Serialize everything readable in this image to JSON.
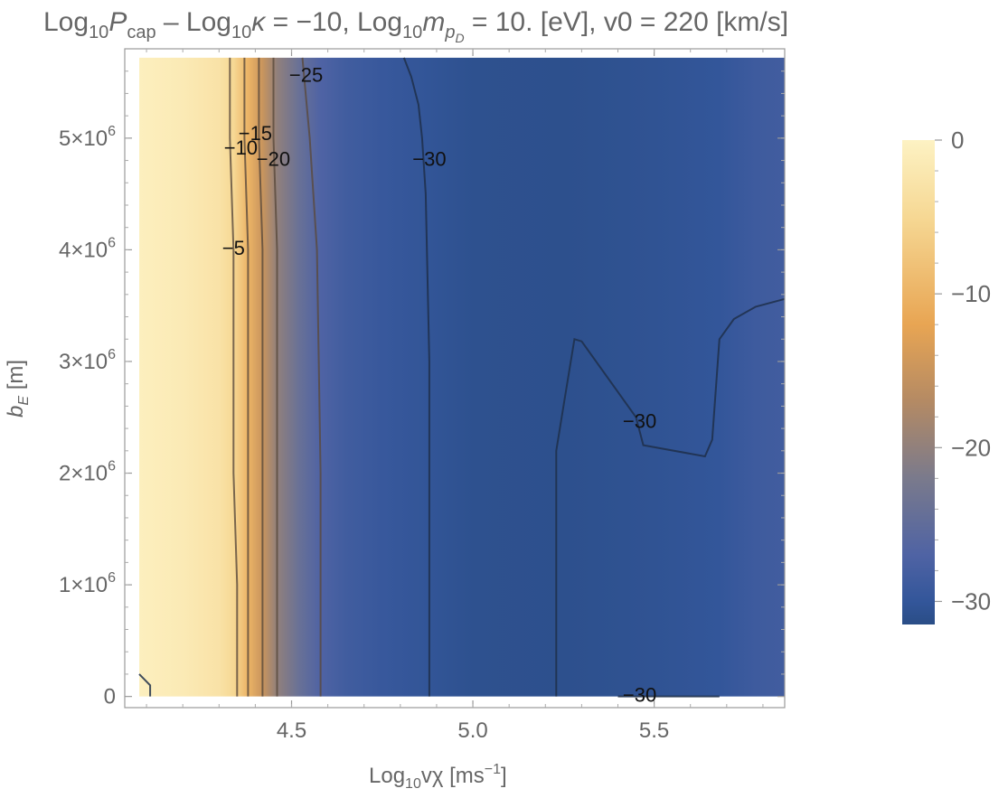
{
  "chart_data": {
    "type": "heatmap",
    "title": {
      "parts": [
        "Log",
        "10",
        "P",
        "cap",
        " – Log",
        "10",
        "κ",
        " = −10, Log",
        "10",
        "m",
        "p",
        "D",
        " = 10. [eV], v0 = 220 [km/s]"
      ]
    },
    "xlabel": {
      "main": "Log",
      "sub": "10",
      "rest": "vχ [ms",
      "sup": "−1",
      "end": "]"
    },
    "ylabel": {
      "main": "b",
      "sub": "E",
      "rest": " [m]"
    },
    "xlim": [
      4.04,
      5.86
    ],
    "ylim": [
      -100000,
      5800000
    ],
    "x_ticks": [
      {
        "value": 4.5,
        "label": "4.5"
      },
      {
        "value": 5.0,
        "label": "5.0"
      },
      {
        "value": 5.5,
        "label": "5.5"
      }
    ],
    "y_ticks": [
      {
        "value": 0,
        "mant": "0",
        "exp": ""
      },
      {
        "value": 1000000,
        "mant": "1×10",
        "exp": "6"
      },
      {
        "value": 2000000,
        "mant": "2×10",
        "exp": "6"
      },
      {
        "value": 3000000,
        "mant": "3×10",
        "exp": "6"
      },
      {
        "value": 4000000,
        "mant": "4×10",
        "exp": "6"
      },
      {
        "value": 5000000,
        "mant": "5×10",
        "exp": "6"
      }
    ],
    "data_x_range": [
      4.08,
      5.86
    ],
    "data_y_range": [
      0,
      5720000
    ],
    "colorbar": {
      "range": [
        -31.5,
        0
      ],
      "ticks": [
        {
          "value": 0,
          "label": "0"
        },
        {
          "value": -10,
          "label": "−10"
        },
        {
          "value": -20,
          "label": "−20"
        },
        {
          "value": -30,
          "label": "−30"
        }
      ],
      "stops": [
        {
          "value": 0,
          "color": "#fdf2c3"
        },
        {
          "value": -5,
          "color": "#f6d894"
        },
        {
          "value": -12,
          "color": "#e8a553"
        },
        {
          "value": -17,
          "color": "#b48a64"
        },
        {
          "value": -22,
          "color": "#7a7a8c"
        },
        {
          "value": -27,
          "color": "#4f63a4"
        },
        {
          "value": -30,
          "color": "#33569a"
        },
        {
          "value": -31.5,
          "color": "#2a4d86"
        }
      ]
    },
    "profile_x": [
      4.08,
      4.2,
      4.3,
      4.34,
      4.38,
      4.42,
      4.46,
      4.52,
      4.58,
      4.65,
      4.75,
      4.88,
      5.0,
      5.25,
      5.5,
      5.68,
      5.78,
      5.86
    ],
    "profile_z": [
      -0.5,
      -1.5,
      -3,
      -5,
      -10,
      -15,
      -20,
      -24,
      -27,
      -28.5,
      -29.5,
      -30.2,
      -30.8,
      -31,
      -30.5,
      -30,
      -28.8,
      -28.4
    ],
    "contours": [
      {
        "level": "-5",
        "points": [
          [
            4.35,
            0
          ],
          [
            4.35,
            1000000
          ],
          [
            4.34,
            2000000
          ],
          [
            4.34,
            3000000
          ],
          [
            4.34,
            4000000
          ],
          [
            4.33,
            5000000
          ],
          [
            4.33,
            5720000
          ]
        ]
      },
      {
        "level": "-10",
        "points": [
          [
            4.38,
            0
          ],
          [
            4.38,
            1000000
          ],
          [
            4.38,
            2000000
          ],
          [
            4.38,
            3000000
          ],
          [
            4.38,
            4000000
          ],
          [
            4.37,
            5000000
          ],
          [
            4.37,
            5720000
          ]
        ]
      },
      {
        "level": "-15",
        "points": [
          [
            4.42,
            0
          ],
          [
            4.42,
            1000000
          ],
          [
            4.42,
            2000000
          ],
          [
            4.42,
            3000000
          ],
          [
            4.42,
            4000000
          ],
          [
            4.41,
            5000000
          ],
          [
            4.41,
            5720000
          ]
        ]
      },
      {
        "level": "-20",
        "points": [
          [
            4.46,
            0
          ],
          [
            4.46,
            1000000
          ],
          [
            4.46,
            2000000
          ],
          [
            4.46,
            3000000
          ],
          [
            4.46,
            4000000
          ],
          [
            4.45,
            5000000
          ],
          [
            4.45,
            5720000
          ]
        ]
      },
      {
        "level": "-25",
        "points": [
          [
            4.58,
            0
          ],
          [
            4.58,
            2000000
          ],
          [
            4.57,
            4000000
          ],
          [
            4.55,
            5000000
          ],
          [
            4.53,
            5720000
          ]
        ]
      },
      {
        "level": "-30",
        "points": [
          [
            4.88,
            0
          ],
          [
            4.88,
            3000000
          ],
          [
            4.87,
            4500000
          ],
          [
            4.86,
            5000000
          ],
          [
            4.85,
            5300000
          ],
          [
            4.83,
            5550000
          ],
          [
            4.81,
            5720000
          ]
        ]
      },
      {
        "level": "-30",
        "points": [
          [
            5.23,
            0
          ],
          [
            5.23,
            2200000
          ],
          [
            5.25,
            2600000
          ],
          [
            5.28,
            3200000
          ],
          [
            5.3,
            3180000
          ],
          [
            5.45,
            2500000
          ],
          [
            5.47,
            2250000
          ],
          [
            5.64,
            2150000
          ],
          [
            5.66,
            2300000
          ],
          [
            5.68,
            3200000
          ],
          [
            5.72,
            3380000
          ],
          [
            5.78,
            3490000
          ],
          [
            5.86,
            3560000
          ]
        ]
      },
      {
        "level": "-30",
        "points": [
          [
            5.4,
            0
          ],
          [
            5.5,
            0.005
          ],
          [
            5.6,
            0.006
          ],
          [
            5.68,
            0
          ]
        ]
      },
      {
        "level": "",
        "points": [
          [
            4.08,
            200000
          ],
          [
            4.11,
            100000
          ],
          [
            4.11,
            0
          ]
        ]
      }
    ],
    "contour_labels": [
      {
        "text": "−25",
        "x": 4.54,
        "y": 5550000
      },
      {
        "text": "−15",
        "x": 4.4,
        "y": 5030000
      },
      {
        "text": "−10",
        "x": 4.36,
        "y": 4900000
      },
      {
        "text": "−20",
        "x": 4.45,
        "y": 4800000
      },
      {
        "text": "−30",
        "x": 4.88,
        "y": 4800000
      },
      {
        "text": "−5",
        "x": 4.34,
        "y": 4000000
      },
      {
        "text": "−30",
        "x": 5.46,
        "y": 2450000
      },
      {
        "text": "−30",
        "x": 5.46,
        "y": 0
      }
    ]
  }
}
